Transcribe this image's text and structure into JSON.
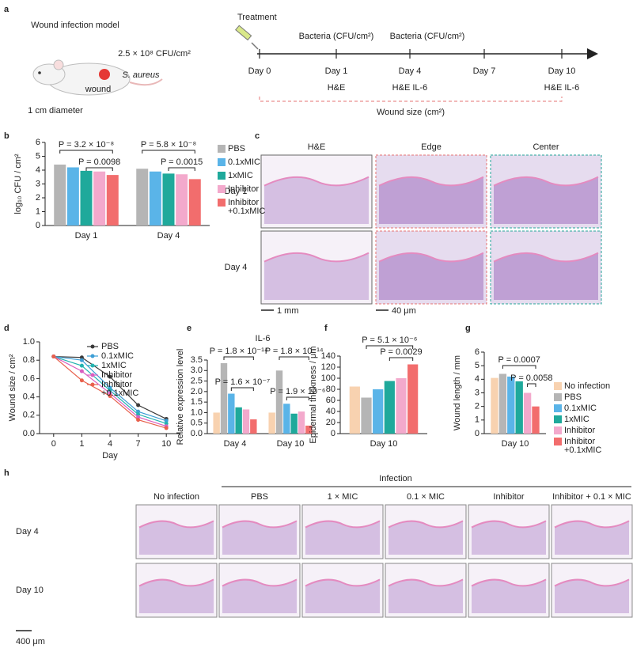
{
  "panel_labels": [
    "a",
    "b",
    "c",
    "d",
    "e",
    "f",
    "g",
    "h"
  ],
  "schematic": {
    "model_title": "Wound infection model",
    "dose": "2.5 × 10⁸ CFU/cm²",
    "bacterium": "S. aureus",
    "wound": "wound",
    "diameter": "1 cm diameter",
    "treatment": "Treatment",
    "bacteria_labels": [
      "Bacteria (CFU/cm²)",
      "Bacteria (CFU/cm²)"
    ],
    "days": [
      "Day 0",
      "Day 1",
      "Day 4",
      "Day 7",
      "Day 10"
    ],
    "assays": [
      "H&E",
      "H&E   IL-6",
      "H&E   IL-6"
    ],
    "wound_size": "Wound size (cm²)"
  },
  "staining": {
    "columns": [
      "H&E",
      "Edge",
      "Center"
    ],
    "rows": [
      "Day 1",
      "Day 4"
    ],
    "scale_bars": [
      "1 mm",
      "40 μm"
    ]
  },
  "histology": {
    "group_label": "Infection",
    "columns": [
      "No infection",
      "PBS",
      "1 × MIC",
      "0.1 × MIC",
      "Inhibitor",
      "Inhibitor + 0.1 × MIC"
    ],
    "rows": [
      "Day 4",
      "Day 10"
    ],
    "scale_bar": "400 μm"
  },
  "chart_data": [
    {
      "type": "bar",
      "ylabel": "log₁₀ CFU / cm²",
      "categories": [
        "Day 1",
        "Day 4"
      ],
      "series": [
        {
          "name": "PBS",
          "color": "#b5b5b5",
          "values": [
            4.4,
            4.1
          ]
        },
        {
          "name": "0.1xMIC",
          "color": "#5ab4e8",
          "values": [
            4.2,
            3.9
          ]
        },
        {
          "name": "1xMIC",
          "color": "#1fa99b",
          "values": [
            3.95,
            3.75
          ]
        },
        {
          "name": "Inhibitor",
          "color": "#f3a9cc",
          "values": [
            3.9,
            3.7
          ]
        },
        {
          "name": "Inhibitor +0.1xMIC",
          "color": "#f26d6d",
          "values": [
            3.65,
            3.35
          ]
        }
      ],
      "ylim": [
        0,
        6
      ],
      "yticks": [
        0,
        1,
        2,
        3,
        4,
        5,
        6
      ],
      "annotations": [
        "P = 3.2 × 10⁻⁸",
        "P = 0.0098",
        "P = 5.8 × 10⁻⁸",
        "P = 0.0015"
      ]
    },
    {
      "type": "line",
      "ylabel": "Wound size / cm²",
      "xlabel": "Day",
      "categories": [
        "0",
        "1",
        "4",
        "7",
        "10"
      ],
      "series": [
        {
          "name": "PBS",
          "color": "#3a3a3a",
          "values": [
            0.84,
            0.83,
            0.62,
            0.31,
            0.16
          ]
        },
        {
          "name": "0.1xMIC",
          "color": "#3d9ed6",
          "values": [
            0.84,
            0.8,
            0.5,
            0.24,
            0.14
          ]
        },
        {
          "name": "1xMIC",
          "color": "#22b3b0",
          "values": [
            0.84,
            0.74,
            0.47,
            0.21,
            0.11
          ]
        },
        {
          "name": "Inhibitor",
          "color": "#d95fc0",
          "values": [
            0.84,
            0.68,
            0.44,
            0.18,
            0.08
          ]
        },
        {
          "name": "Inhibitor +0.1xMIC",
          "color": "#e8604c",
          "values": [
            0.84,
            0.58,
            0.41,
            0.15,
            0.06
          ]
        }
      ],
      "ylim": [
        0,
        1
      ],
      "yticks": [
        {
          "value": 0,
          "label": "0.0"
        },
        {
          "value": 0.2,
          "label": "0.2"
        },
        {
          "value": 0.4,
          "label": "0.4"
        },
        {
          "value": 0.6,
          "label": "0.6"
        },
        {
          "value": 0.8,
          "label": "0.8"
        },
        {
          "value": 1,
          "label": "1.0"
        }
      ]
    },
    {
      "type": "bar",
      "title": "IL-6",
      "ylabel": "Relative expression level",
      "categories": [
        "Day 4",
        "Day 10"
      ],
      "series": [
        {
          "color": "#f8d2b0",
          "values": [
            1.0,
            1.0
          ]
        },
        {
          "color": "#b5b5b5",
          "values": [
            3.35,
            3.0
          ]
        },
        {
          "color": "#5ab4e8",
          "values": [
            1.9,
            1.42
          ]
        },
        {
          "color": "#1fa99b",
          "values": [
            1.25,
            0.95
          ]
        },
        {
          "color": "#f3a9cc",
          "values": [
            1.15,
            1.05
          ]
        },
        {
          "color": "#f26d6d",
          "values": [
            0.68,
            0.38
          ]
        }
      ],
      "ylim": [
        0,
        3.5
      ],
      "yticks": [
        {
          "value": 0,
          "label": "0.0"
        },
        {
          "value": 0.5,
          "label": "0.5"
        },
        {
          "value": 1,
          "label": "1.0"
        },
        {
          "value": 1.5,
          "label": "1.5"
        },
        {
          "value": 2,
          "label": "2.0"
        },
        {
          "value": 2.5,
          "label": "2.5"
        },
        {
          "value": 3,
          "label": "3.0"
        },
        {
          "value": 3.5,
          "label": "3.5"
        }
      ],
      "annotations": [
        "P = 1.8 × 10⁻¹⁴",
        "P = 1.6 × 10⁻⁷",
        "P = 1.8 × 10⁻¹⁴",
        "P = 1.9 × 10⁻⁶"
      ]
    },
    {
      "type": "bar",
      "ylabel": "Epidermal thickness / μm",
      "categories": [
        "Day 10"
      ],
      "series": [
        {
          "color": "#f8d2b0",
          "values": [
            85
          ]
        },
        {
          "color": "#b5b5b5",
          "values": [
            65
          ]
        },
        {
          "color": "#5ab4e8",
          "values": [
            80
          ]
        },
        {
          "color": "#1fa99b",
          "values": [
            95
          ]
        },
        {
          "color": "#f3a9cc",
          "values": [
            100
          ]
        },
        {
          "color": "#f26d6d",
          "values": [
            125
          ]
        }
      ],
      "ylim": [
        0,
        140
      ],
      "yticks": [
        0,
        20,
        40,
        60,
        80,
        100,
        120,
        140
      ],
      "annotations": [
        "P = 5.1 × 10⁻⁶",
        "P = 0.0029"
      ]
    },
    {
      "type": "bar",
      "ylabel": "Wound length / mm",
      "categories": [
        "Day 10"
      ],
      "series": [
        {
          "name": "No infection",
          "color": "#f8d2b0",
          "values": [
            4.1
          ]
        },
        {
          "name": "PBS",
          "color": "#b5b5b5",
          "values": [
            4.4
          ]
        },
        {
          "name": "0.1xMIC",
          "color": "#5ab4e8",
          "values": [
            4.2
          ]
        },
        {
          "name": "1xMIC",
          "color": "#1fa99b",
          "values": [
            3.85
          ]
        },
        {
          "name": "Inhibitor",
          "color": "#f3a9cc",
          "values": [
            3.0
          ]
        },
        {
          "name": "Inhibitor +0.1xMIC",
          "color": "#f26d6d",
          "values": [
            2.0
          ]
        }
      ],
      "ylim": [
        0,
        6
      ],
      "yticks": [
        0,
        1,
        2,
        3,
        4,
        5,
        6
      ],
      "annotations": [
        "P = 0.0007",
        "P = 0.0058"
      ]
    }
  ]
}
